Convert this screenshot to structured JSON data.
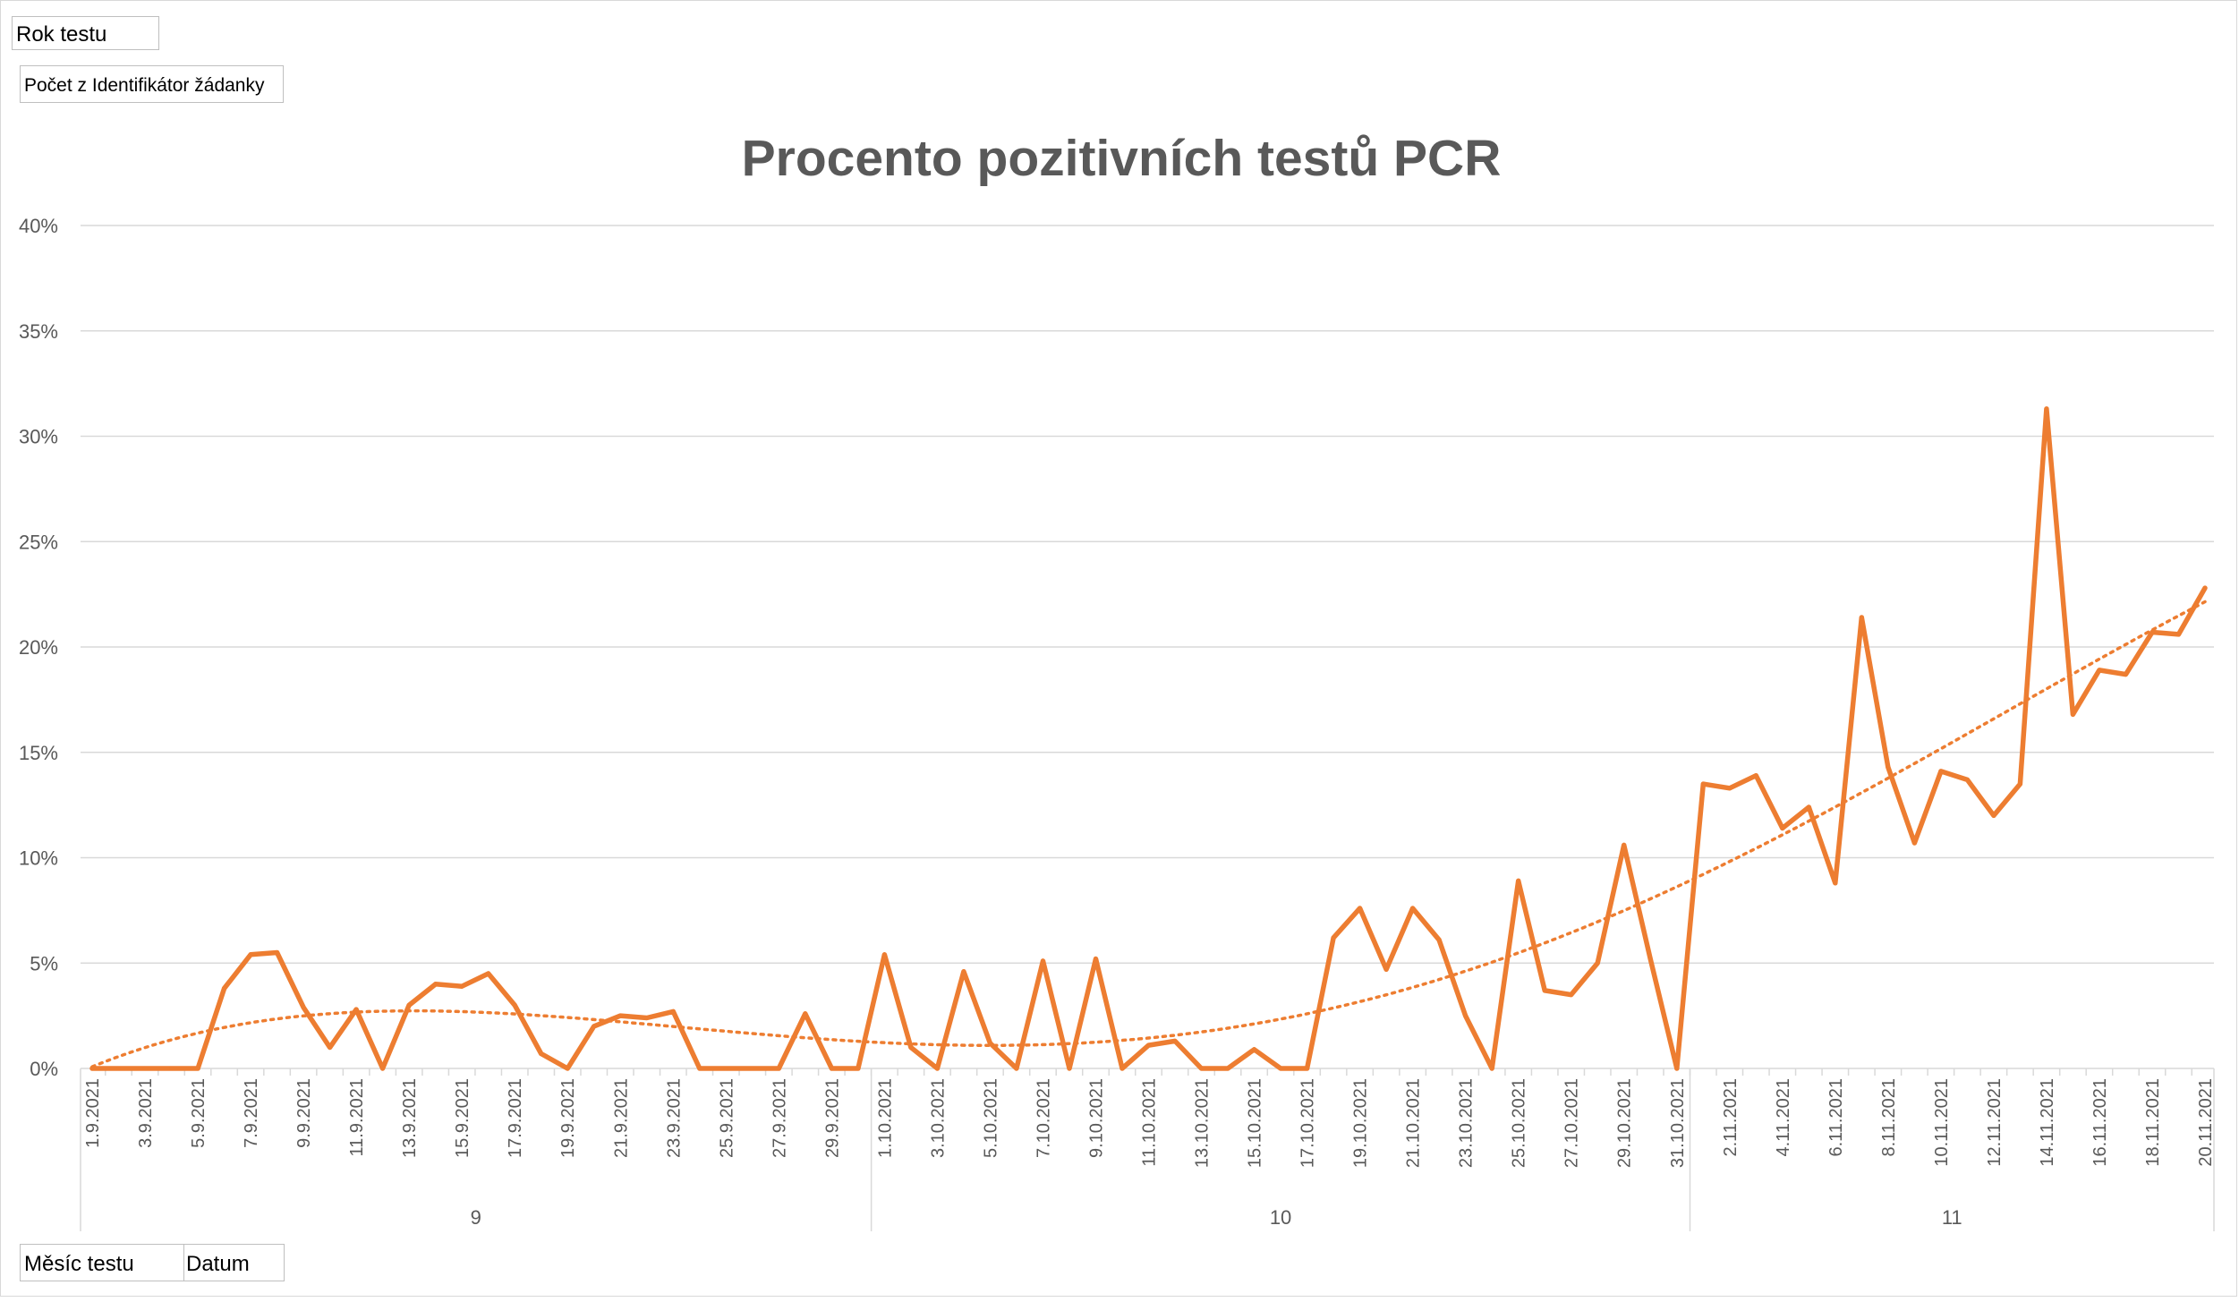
{
  "pivot_buttons": {
    "rok_testu": "Rok testu",
    "pocet": "Počet z Identifikátor žádanky",
    "mesic_testu": "Měsíc testu",
    "datum": "Datum"
  },
  "colors": {
    "series": "#ED7D31",
    "grid": "#D9D9D9",
    "axis_text": "#595959"
  },
  "chart_data": {
    "type": "line",
    "title": "Procento pozitivních testů PCR",
    "xlabel": "",
    "ylabel": "",
    "ylim": [
      0,
      0.4
    ],
    "yticks": [
      0,
      0.05,
      0.1,
      0.15,
      0.2,
      0.25,
      0.3,
      0.35,
      0.4
    ],
    "ytick_labels": [
      "0%",
      "5%",
      "10%",
      "15%",
      "20%",
      "25%",
      "30%",
      "35%",
      "40%"
    ],
    "grid": true,
    "legend": "none",
    "trendline": "dotted polynomial",
    "categories": [
      "1.9.2021",
      "2.9.2021",
      "3.9.2021",
      "4.9.2021",
      "5.9.2021",
      "6.9.2021",
      "7.9.2021",
      "8.9.2021",
      "9.9.2021",
      "10.9.2021",
      "11.9.2021",
      "12.9.2021",
      "13.9.2021",
      "14.9.2021",
      "15.9.2021",
      "16.9.2021",
      "17.9.2021",
      "18.9.2021",
      "19.9.2021",
      "20.9.2021",
      "21.9.2021",
      "22.9.2021",
      "23.9.2021",
      "24.9.2021",
      "25.9.2021",
      "26.9.2021",
      "27.9.2021",
      "28.9.2021",
      "29.9.2021",
      "30.9.2021",
      "1.10.2021",
      "2.10.2021",
      "3.10.2021",
      "4.10.2021",
      "5.10.2021",
      "6.10.2021",
      "7.10.2021",
      "8.10.2021",
      "9.10.2021",
      "10.10.2021",
      "11.10.2021",
      "12.10.2021",
      "13.10.2021",
      "14.10.2021",
      "15.10.2021",
      "16.10.2021",
      "17.10.2021",
      "18.10.2021",
      "19.10.2021",
      "20.10.2021",
      "21.10.2021",
      "22.10.2021",
      "23.10.2021",
      "24.10.2021",
      "25.10.2021",
      "26.10.2021",
      "27.10.2021",
      "28.10.2021",
      "29.10.2021",
      "30.10.2021",
      "31.10.2021",
      "1.11.2021",
      "2.11.2021",
      "3.11.2021",
      "4.11.2021",
      "5.11.2021",
      "6.11.2021",
      "7.11.2021",
      "8.11.2021",
      "9.11.2021",
      "10.11.2021",
      "11.11.2021",
      "12.11.2021",
      "13.11.2021",
      "14.11.2021",
      "15.11.2021",
      "16.11.2021",
      "17.11.2021",
      "18.11.2021",
      "19.11.2021",
      "20.11.2021"
    ],
    "shown_tick_labels": [
      "1.9.2021",
      "3.9.2021",
      "5.9.2021",
      "7.9.2021",
      "9.9.2021",
      "11.9.2021",
      "13.9.2021",
      "15.9.2021",
      "17.9.2021",
      "19.9.2021",
      "21.9.2021",
      "23.9.2021",
      "25.9.2021",
      "27.9.2021",
      "29.9.2021",
      "1.10.2021",
      "3.10.2021",
      "5.10.2021",
      "7.10.2021",
      "9.10.2021",
      "11.10.2021",
      "13.10.2021",
      "15.10.2021",
      "17.10.2021",
      "19.10.2021",
      "21.10.2021",
      "23.10.2021",
      "25.10.2021",
      "27.10.2021",
      "29.10.2021",
      "31.10.2021",
      "2.11.2021",
      "4.11.2021",
      "6.11.2021",
      "8.11.2021",
      "10.11.2021",
      "12.11.2021",
      "14.11.2021",
      "16.11.2021",
      "18.11.2021",
      "20.11.2021"
    ],
    "groups": [
      {
        "label": "9",
        "count": 30
      },
      {
        "label": "10",
        "count": 31
      },
      {
        "label": "11",
        "count": 20
      }
    ],
    "series": [
      {
        "values": [
          0,
          0,
          0,
          0,
          0,
          0.038,
          0.054,
          0.055,
          0.029,
          0.01,
          0.028,
          0,
          0.03,
          0.04,
          0.039,
          0.045,
          0.03,
          0.007,
          0,
          0.02,
          0.025,
          0.024,
          0.027,
          0,
          0,
          0,
          0,
          0.026,
          0,
          0,
          0.054,
          0.01,
          0,
          0.046,
          0.012,
          0,
          0.051,
          0,
          0.052,
          0,
          0.011,
          0.013,
          0,
          0,
          0.009,
          0,
          0,
          0.062,
          0.076,
          0.047,
          0.076,
          0.061,
          0.025,
          0,
          0.089,
          0.037,
          0.035,
          0.05,
          0.106,
          0.052,
          0,
          0.135,
          0.133,
          0.139,
          0.114,
          0.124,
          0.088,
          0.214,
          0.143,
          0.107,
          0.141,
          0.137,
          0.12,
          0.135,
          0.313,
          0.168,
          0.189,
          0.187,
          0.207,
          0.206,
          0.228
        ]
      }
    ]
  }
}
